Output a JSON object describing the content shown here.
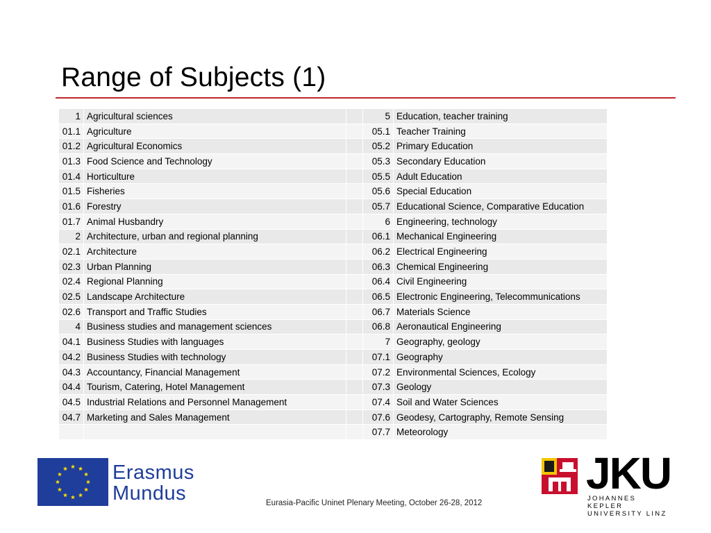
{
  "slide": {
    "title": "Range of Subjects (1)",
    "footer": "Eurasia-Pacific Uninet Plenary Meeting, October 26-28, 2012"
  },
  "table": {
    "rows": [
      {
        "lc": "1",
        "ls": "Agricultural sciences",
        "rc": "5",
        "rs": "Education, teacher training"
      },
      {
        "lc": "01.1",
        "ls": "Agriculture",
        "rc": "05.1",
        "rs": "Teacher Training"
      },
      {
        "lc": "01.2",
        "ls": "Agricultural Economics",
        "rc": "05.2",
        "rs": "Primary Education"
      },
      {
        "lc": "01.3",
        "ls": "Food Science and Technology",
        "rc": "05.3",
        "rs": "Secondary Education"
      },
      {
        "lc": "01.4",
        "ls": "Horticulture",
        "rc": "05.5",
        "rs": "Adult Education"
      },
      {
        "lc": "01.5",
        "ls": "Fisheries",
        "rc": "05.6",
        "rs": "Special Education"
      },
      {
        "lc": "01.6",
        "ls": "Forestry",
        "rc": "05.7",
        "rs": "Educational Science, Comparative Education"
      },
      {
        "lc": "01.7",
        "ls": "Animal Husbandry",
        "rc": "6",
        "rs": "Engineering, technology"
      },
      {
        "lc": "2",
        "ls": "Architecture, urban and regional planning",
        "rc": "06.1",
        "rs": "Mechanical Engineering"
      },
      {
        "lc": "02.1",
        "ls": "Architecture",
        "rc": "06.2",
        "rs": "Electrical Engineering"
      },
      {
        "lc": "02.3",
        "ls": "Urban Planning",
        "rc": "06.3",
        "rs": "Chemical Engineering"
      },
      {
        "lc": "02.4",
        "ls": "Regional Planning",
        "rc": "06.4",
        "rs": "Civil Engineering"
      },
      {
        "lc": "02.5",
        "ls": "Landscape Architecture",
        "rc": "06.5",
        "rs": "Electronic Engineering, Telecommunications"
      },
      {
        "lc": "02.6",
        "ls": "Transport and Traffic Studies",
        "rc": "06.7",
        "rs": "Materials Science"
      },
      {
        "lc": "4",
        "ls": "Business studies and management sciences",
        "rc": "06.8",
        "rs": "Aeronautical Engineering"
      },
      {
        "lc": "04.1",
        "ls": "Business Studies with languages",
        "rc": "7",
        "rs": "Geography, geology"
      },
      {
        "lc": "04.2",
        "ls": "Business Studies with technology",
        "rc": "07.1",
        "rs": "Geography"
      },
      {
        "lc": "04.3",
        "ls": "Accountancy, Financial Management",
        "rc": "07.2",
        "rs": "Environmental Sciences, Ecology"
      },
      {
        "lc": "04.4",
        "ls": "Tourism, Catering, Hotel Management",
        "rc": "07.3",
        "rs": "Geology"
      },
      {
        "lc": "04.5",
        "ls": "Industrial Relations and Personnel Management",
        "rc": "07.4",
        "rs": "Soil and Water Sciences"
      },
      {
        "lc": "04.7",
        "ls": "Marketing and Sales Management",
        "rc": "07.6",
        "rs": "Geodesy, Cartography, Remote Sensing"
      },
      {
        "lc": "",
        "ls": "",
        "rc": "07.7",
        "rs": "Meteorology"
      }
    ]
  },
  "logos": {
    "erasmus": {
      "line1": "Erasmus",
      "line2": "Mundus",
      "icon": "eu-flag-icon"
    },
    "jku": {
      "letters": "JKU",
      "line1": "JOHANNES KEPLER",
      "line2": "UNIVERSITY LINZ",
      "icon": "university-crest-icon"
    }
  },
  "colors": {
    "accent_rule": "#c0262d",
    "eu_blue": "#1f3d9a",
    "eu_star": "#ffdd00",
    "row_dark": "#e9e9e9",
    "row_light": "#f4f4f4"
  }
}
